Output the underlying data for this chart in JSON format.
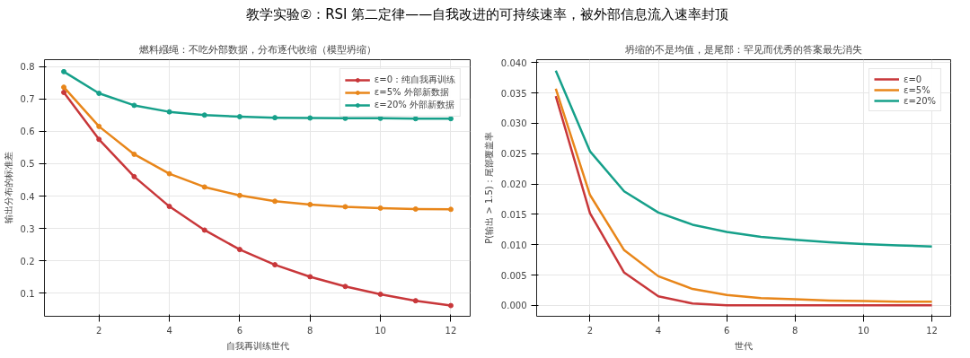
{
  "chart_data": [
    {
      "type": "other",
      "title": "教学实验②：RSI 第二定律——自我改进的可持续速率，被外部信息流入速率封顶"
    },
    {
      "type": "line",
      "title": "燃料繦绳：不吃外部数据，分布逐代收缩（模型坍缩）",
      "xlabel": "自我再训练世代",
      "ylabel": "输出分布的标准差",
      "x": [
        1,
        2,
        3,
        4,
        5,
        6,
        7,
        8,
        9,
        10,
        11,
        12
      ],
      "series": [
        {
          "name": "ε=0：纯自我再训练",
          "color": "#c8373a",
          "values": [
            0.72,
            0.575,
            0.46,
            0.368,
            0.295,
            0.235,
            0.188,
            0.151,
            0.121,
            0.097,
            0.077,
            0.062
          ]
        },
        {
          "name": "ε=5% 外部新数据",
          "color": "#e8861a",
          "values": [
            0.736,
            0.615,
            0.529,
            0.469,
            0.428,
            0.402,
            0.384,
            0.374,
            0.367,
            0.363,
            0.36,
            0.359
          ]
        },
        {
          "name": "ε=20% 外部新数据",
          "color": "#16a08a",
          "values": [
            0.784,
            0.717,
            0.68,
            0.66,
            0.65,
            0.645,
            0.642,
            0.641,
            0.64,
            0.64,
            0.639,
            0.639
          ]
        }
      ],
      "xlim": [
        0.45,
        12.55
      ],
      "xticks": [
        2,
        4,
        6,
        8,
        10,
        12
      ],
      "ylim": [
        0.029,
        0.821
      ],
      "yticks": [
        0.1,
        0.2,
        0.3,
        0.4,
        0.5,
        0.6,
        0.7,
        0.8
      ],
      "grid": true,
      "legend": "top right",
      "marker": "circle",
      "line_style": "solid"
    },
    {
      "type": "line",
      "title": "坍缩的不是均值，是尾部：罕见而优秀的答案最先消失",
      "xlabel": "世代",
      "ylabel": "P(输出 > 1.5)：尾部覆盖率",
      "x": [
        1,
        2,
        3,
        4,
        5,
        6,
        7,
        8,
        9,
        10,
        11,
        12
      ],
      "series": [
        {
          "name": "ε=0",
          "color": "#c8373a",
          "values": [
            0.0345,
            0.0152,
            0.0054,
            0.0015,
            0.0003,
            0,
            0,
            0,
            0,
            0,
            0,
            0
          ]
        },
        {
          "name": "ε=5%",
          "color": "#e8861a",
          "values": [
            0.0357,
            0.0182,
            0.0091,
            0.0048,
            0.0027,
            0.0017,
            0.0012,
            0.001,
            0.0008,
            0.0007,
            0.0006,
            0.0006
          ]
        },
        {
          "name": "ε=20%",
          "color": "#16a08a",
          "values": [
            0.0387,
            0.0254,
            0.0188,
            0.0153,
            0.0133,
            0.0121,
            0.0113,
            0.0108,
            0.0104,
            0.0101,
            0.0099,
            0.0097
          ]
        }
      ],
      "xlim": [
        0.44,
        12.55
      ],
      "xticks": [
        2,
        4,
        6,
        8,
        10,
        12
      ],
      "ylim": [
        -0.0018,
        0.0405
      ],
      "yticks": [
        {
          "value": 0,
          "label": "0.000"
        },
        {
          "value": 0.005,
          "label": "0.005"
        },
        {
          "value": 0.01,
          "label": "0.010"
        },
        {
          "value": 0.015,
          "label": "0.015"
        },
        {
          "value": 0.02,
          "label": "0.020"
        },
        {
          "value": 0.025,
          "label": "0.025"
        },
        {
          "value": 0.03,
          "label": "0.030"
        },
        {
          "value": 0.035,
          "label": "0.035"
        },
        {
          "value": 0.04,
          "label": "0.040"
        }
      ],
      "grid": true,
      "legend": "top right",
      "line_style": "solid"
    }
  ]
}
